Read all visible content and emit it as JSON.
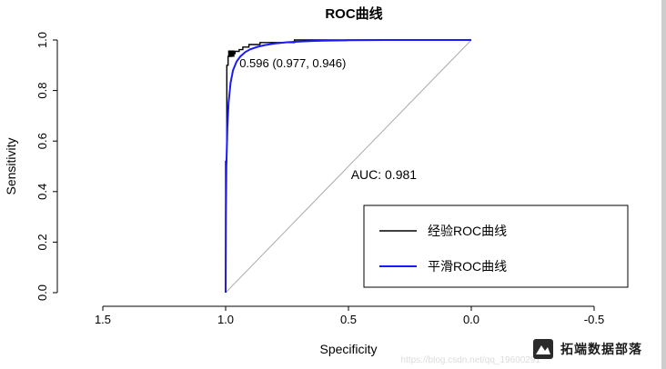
{
  "chart_data": {
    "type": "line",
    "title": "ROC曲线",
    "xlabel": "Specificity",
    "ylabel": "Sensitivity",
    "xlim": [
      1.5,
      -0.5
    ],
    "ylim": [
      0.0,
      1.0
    ],
    "x_reversed": true,
    "grid": false,
    "x_ticks": [
      1.5,
      1.0,
      0.5,
      0.0,
      -0.5
    ],
    "x_tick_labels": [
      "1.5",
      "1.0",
      "0.5",
      "0.0",
      "-0.5"
    ],
    "y_ticks": [
      0.0,
      0.2,
      0.4,
      0.6,
      0.8,
      1.0
    ],
    "y_tick_labels": [
      "0.0",
      "0.2",
      "0.4",
      "0.6",
      "0.8",
      "1.0"
    ],
    "reference_line": {
      "from": [
        1.0,
        0.0
      ],
      "to": [
        0.0,
        1.0
      ],
      "color": "#aaaaaa"
    },
    "series": [
      {
        "name": "经验ROC曲线",
        "color": "#000000",
        "width": 1.4,
        "points": [
          [
            1.0,
            0.0
          ],
          [
            1.0,
            0.52
          ],
          [
            0.995,
            0.52
          ],
          [
            0.995,
            0.9
          ],
          [
            0.99,
            0.9
          ],
          [
            0.99,
            0.935
          ],
          [
            0.977,
            0.935
          ],
          [
            0.977,
            0.946
          ],
          [
            0.962,
            0.946
          ],
          [
            0.962,
            0.955
          ],
          [
            0.945,
            0.955
          ],
          [
            0.945,
            0.962
          ],
          [
            0.93,
            0.962
          ],
          [
            0.93,
            0.972
          ],
          [
            0.905,
            0.972
          ],
          [
            0.905,
            0.982
          ],
          [
            0.86,
            0.982
          ],
          [
            0.86,
            0.99
          ],
          [
            0.72,
            0.99
          ],
          [
            0.72,
            1.0
          ],
          [
            0.0,
            1.0
          ]
        ]
      },
      {
        "name": "平滑ROC曲线",
        "color": "#1a1aff",
        "width": 2,
        "points": [
          [
            1.0,
            0.0
          ],
          [
            0.999,
            0.3
          ],
          [
            0.997,
            0.5
          ],
          [
            0.993,
            0.65
          ],
          [
            0.988,
            0.75
          ],
          [
            0.98,
            0.83
          ],
          [
            0.97,
            0.88
          ],
          [
            0.955,
            0.915
          ],
          [
            0.94,
            0.935
          ],
          [
            0.92,
            0.952
          ],
          [
            0.9,
            0.963
          ],
          [
            0.87,
            0.973
          ],
          [
            0.84,
            0.98
          ],
          [
            0.8,
            0.986
          ],
          [
            0.75,
            0.991
          ],
          [
            0.7,
            0.994
          ],
          [
            0.65,
            0.996
          ],
          [
            0.6,
            0.997
          ],
          [
            0.5,
            0.999
          ],
          [
            0.35,
            1.0
          ],
          [
            0.0,
            1.0
          ]
        ]
      }
    ],
    "annotations": {
      "threshold_label": "0.596 (0.977, 0.946)",
      "threshold_point": [
        0.977,
        0.946
      ],
      "auc_label": "AUC: 0.981",
      "auc_color": "#f08080",
      "auc_position": [
        0.49,
        0.45
      ]
    },
    "legend": {
      "position": "bottomright",
      "entries": [
        {
          "label": "经验ROC曲线",
          "color": "#000000"
        },
        {
          "label": "平滑ROC曲线",
          "color": "#1a1aff"
        }
      ]
    }
  },
  "watermark": {
    "brand": "拓端数据部落",
    "url_text": "https://blog.csdn.net/qq_19600291"
  }
}
